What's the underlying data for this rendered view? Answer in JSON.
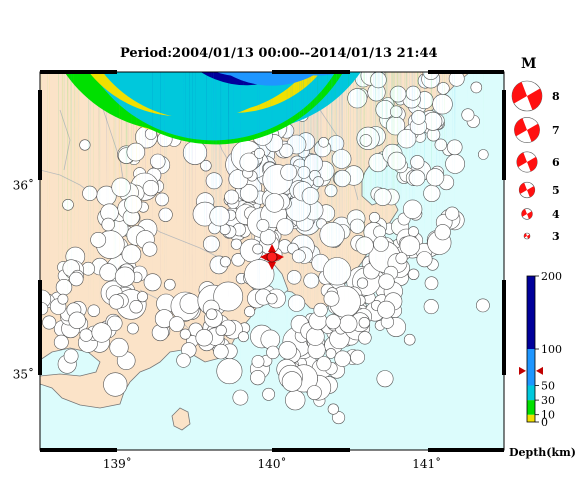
{
  "title": "Period:2004/01/13 00:00--2014/01/13 21:44",
  "map": {
    "lon_range": [
      138.5,
      141.5
    ],
    "lat_range": [
      34.6,
      36.6
    ],
    "lon_ticks": [
      {
        "value": 139,
        "label": "139˚"
      },
      {
        "value": 140,
        "label": "140˚"
      },
      {
        "value": 141,
        "label": "141˚"
      }
    ],
    "lat_ticks": [
      {
        "value": 36,
        "label": "36˚"
      },
      {
        "value": 35,
        "label": "35˚"
      }
    ],
    "colors": {
      "land": "#fbe3c8",
      "sea": "#dcfcfc",
      "coast": "#777777",
      "border": "#bbbbbb"
    },
    "epicenter": {
      "lon": 140.0,
      "lat": 35.65
    }
  },
  "magnitude_legend": {
    "title": "M",
    "items": [
      {
        "label": "8",
        "mag": 8
      },
      {
        "label": "7",
        "mag": 7
      },
      {
        "label": "6",
        "mag": 6
      },
      {
        "label": "5",
        "mag": 5
      },
      {
        "label": "4",
        "mag": 4
      },
      {
        "label": "3",
        "mag": 3
      }
    ]
  },
  "depth_scale": {
    "ticks": [
      "200",
      "100",
      "50",
      "30",
      "10",
      "0"
    ],
    "tick_values": [
      200,
      100,
      50,
      30,
      10,
      0
    ],
    "label": "Depth(km)",
    "marker_depth": 70,
    "color_bands": [
      {
        "from": 0,
        "to": 10,
        "color": "#f0e000"
      },
      {
        "from": 10,
        "to": 30,
        "color": "#00e000"
      },
      {
        "from": 30,
        "to": 50,
        "color": "#00c8dc"
      },
      {
        "from": 50,
        "to": 100,
        "color": "#1e96ff"
      },
      {
        "from": 100,
        "to": 200,
        "color": "#00009a"
      }
    ]
  }
}
